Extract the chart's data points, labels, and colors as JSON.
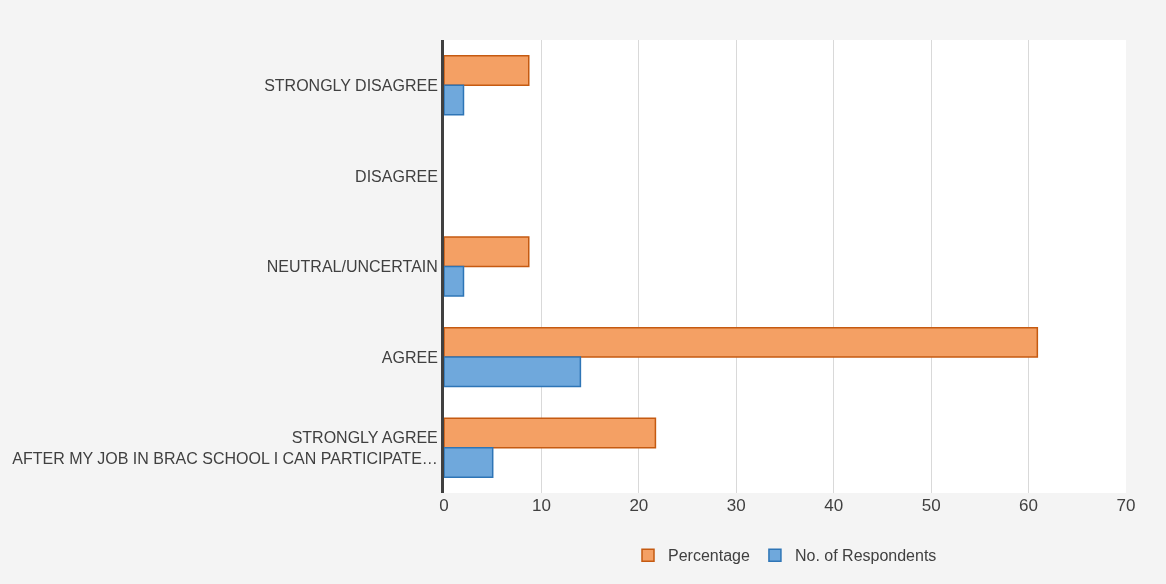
{
  "chart_data": {
    "type": "bar",
    "orientation": "horizontal",
    "categories": [
      "STRONGLY DISAGREE",
      "DISAGREE",
      "NEUTRAL/UNCERTAIN",
      "AGREE",
      "STRONGLY AGREE\nAFTER MY JOB IN BRAC SCHOOL I CAN PARTICIPATE…"
    ],
    "series": [
      {
        "name": "Percentage",
        "color": "#f4a064",
        "values": [
          8.7,
          0,
          8.7,
          60.9,
          21.7
        ]
      },
      {
        "name": "No. of Respondents",
        "color": "#6fa8dc",
        "values": [
          2,
          0,
          2,
          14,
          5
        ]
      }
    ],
    "xlim": [
      0,
      70
    ],
    "xticks": [
      0,
      10,
      20,
      30,
      40,
      50,
      60,
      70
    ],
    "grid": "x",
    "legend": "bottom"
  }
}
